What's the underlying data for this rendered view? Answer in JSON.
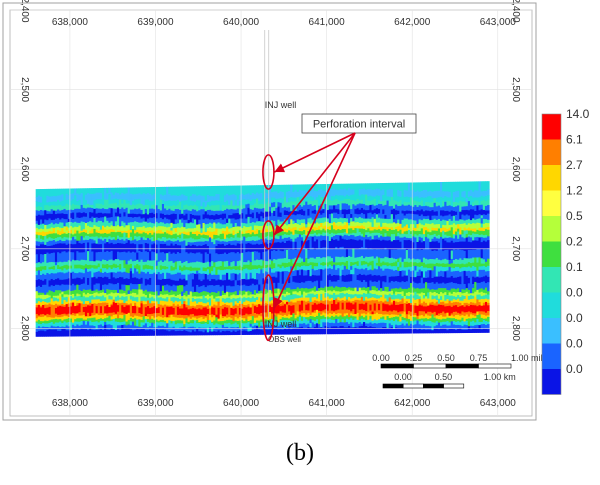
{
  "caption": "(b)",
  "chart_data": {
    "type": "heatmap",
    "subtype": "reservoir cross-section",
    "x_ticks": [
      "638,000",
      "639,000",
      "640,000",
      "641,000",
      "642,000",
      "643,000"
    ],
    "x_tick_values": [
      638000,
      639000,
      640000,
      641000,
      642000,
      643000
    ],
    "y_ticks": [
      "2,400",
      "2,500",
      "2,600",
      "2,700",
      "2,800"
    ],
    "y_tick_values": [
      2400,
      2500,
      2600,
      2700,
      2800
    ],
    "xlim": [
      637300,
      643400
    ],
    "ylim": [
      2400,
      2910
    ],
    "grid": true,
    "wells": [
      {
        "label": "INJ well",
        "x": 640300,
        "label_position": "top"
      },
      {
        "label": "INJ well",
        "x": 640300,
        "label_position": "bottom"
      },
      {
        "label": "OBS well",
        "x": 640350,
        "label_position": "bottom"
      }
    ],
    "annotation": {
      "label": "Perforation interval",
      "intervals": [
        {
          "x": 640320,
          "y_top": 2582,
          "y_bottom": 2625
        },
        {
          "x": 640320,
          "y_top": 2665,
          "y_bottom": 2700
        },
        {
          "x": 640320,
          "y_top": 2733,
          "y_bottom": 2815
        }
      ]
    },
    "legend": {
      "placement": "right",
      "labels": [
        "14.0",
        "6.1",
        "2.7",
        "1.2",
        "0.5",
        "0.2",
        "0.1",
        "0.0",
        "0.0",
        "0.0",
        "0.0"
      ],
      "colors": [
        "#ff0000",
        "#ff7f00",
        "#ffd700",
        "#ffff40",
        "#b5ff3a",
        "#3fdf3f",
        "#32e6b4",
        "#20dcdc",
        "#3abfff",
        "#1a64ff",
        "#0a14e6"
      ]
    },
    "scale_bars": [
      {
        "labels": [
          "0.00",
          "0.25",
          "0.50",
          "0.75",
          "1.00 mile"
        ],
        "miles": [
          0,
          0.25,
          0.5,
          0.75,
          1.0
        ]
      },
      {
        "labels": [
          "0.00",
          "0.50",
          "1.00 km"
        ],
        "km": [
          0,
          0.5,
          1.0
        ]
      }
    ]
  }
}
